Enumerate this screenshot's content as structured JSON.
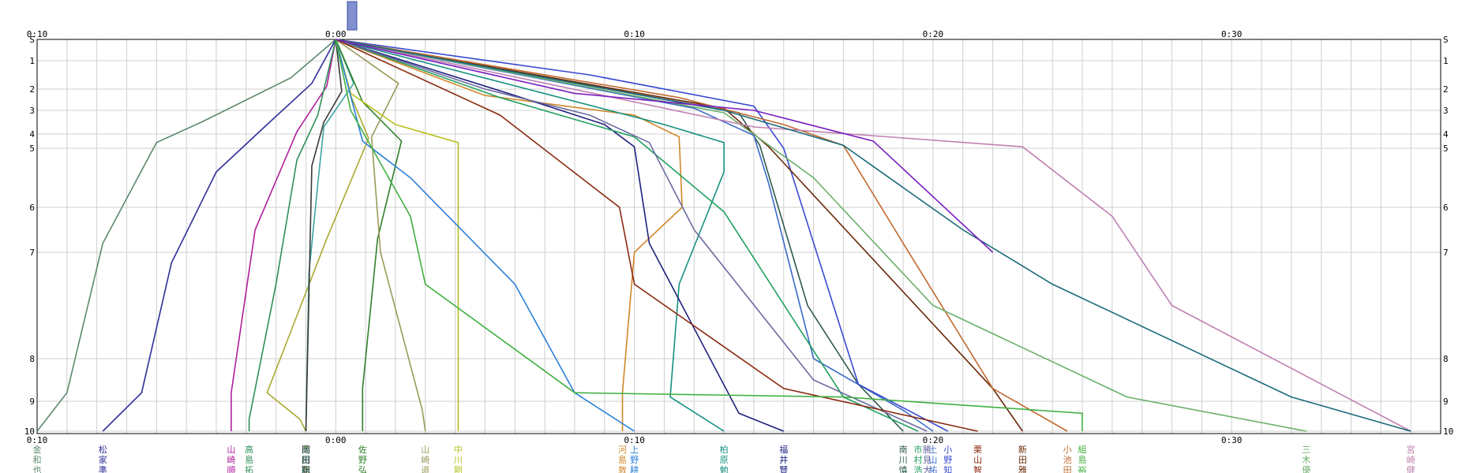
{
  "chart_data": {
    "type": "line",
    "title": "",
    "x_tick_labels": [
      "0:10",
      "0:00",
      "0:10",
      "0:20",
      "0:30"
    ],
    "y_tick_labels": [
      "S",
      "1",
      "2",
      "3",
      "4",
      "5",
      "6",
      "7",
      "8",
      "9",
      "10"
    ],
    "x_range_min": [
      -10,
      37
    ],
    "grid": true,
    "x_unit": "minutes relative to 0:00",
    "series": [
      {
        "name": "金和也",
        "color": "#5b8a6b",
        "points": [
          [
            0,
            0
          ],
          [
            -1.5,
            1.6
          ],
          [
            -4.5,
            3.5
          ],
          [
            -6,
            4.6
          ],
          [
            -7.8,
            6.8
          ],
          [
            -9,
            8.8
          ],
          [
            -10,
            10
          ]
        ]
      },
      {
        "name": "松家準",
        "color": "#2f2f9a",
        "points": [
          [
            0,
            0
          ],
          [
            -0.8,
            1.8
          ],
          [
            -2.3,
            3.6
          ],
          [
            -4,
            5.4
          ],
          [
            -5.5,
            7.1
          ],
          [
            -6.5,
            8.8
          ],
          [
            -7.8,
            10
          ]
        ]
      },
      {
        "name": "山崎順",
        "color": "#b0209c",
        "points": [
          [
            0,
            0
          ],
          [
            -0.3,
            1.9
          ],
          [
            -1.3,
            3.9
          ],
          [
            -2.7,
            6.5
          ],
          [
            -3.5,
            8.8
          ],
          [
            -3.5,
            10
          ]
        ]
      },
      {
        "name": "高島拓",
        "color": "#2e8f5a",
        "points": [
          [
            0,
            0
          ],
          [
            -0.6,
            3.2
          ],
          [
            -1.3,
            5.2
          ],
          [
            -2,
            7.3
          ],
          [
            -2.9,
            9.6
          ],
          [
            -2.9,
            10
          ]
        ]
      },
      {
        "name": "中川宗",
        "color": "#a9a930",
        "points": [
          [
            0,
            0
          ],
          [
            0.5,
            2.3
          ],
          [
            1.1,
            4.3
          ],
          [
            -0.3,
            6.7
          ],
          [
            -2.3,
            8.8
          ],
          [
            -1.2,
            9.6
          ],
          [
            -1,
            10
          ]
        ]
      },
      {
        "name": "西村翔",
        "color": "#3fa3a3",
        "points": [
          [
            0,
            0
          ],
          [
            0.6,
            1.8
          ],
          [
            -0.4,
            3.7
          ],
          [
            -0.6,
            5.6
          ],
          [
            -0.9,
            7.2
          ],
          [
            -1,
            10
          ]
        ]
      },
      {
        "name": "岡田聡",
        "color": "#3a3a3a",
        "points": [
          [
            0,
            0
          ],
          [
            0.2,
            2.1
          ],
          [
            -0.4,
            3.5
          ],
          [
            -0.8,
            5.3
          ],
          [
            -1,
            10
          ]
        ]
      },
      {
        "name": "佐野弘",
        "color": "#30802a",
        "points": [
          [
            0,
            0
          ],
          [
            0.9,
            2.6
          ],
          [
            2.2,
            4.5
          ],
          [
            1.4,
            6.7
          ],
          [
            0.9,
            8.7
          ],
          [
            0.9,
            10
          ]
        ]
      },
      {
        "name": "山崎道",
        "color": "#9a9a5a",
        "points": [
          [
            0,
            0
          ],
          [
            2.1,
            1.8
          ],
          [
            1.2,
            4.2
          ],
          [
            1.5,
            7
          ],
          [
            2.9,
            9.3
          ],
          [
            3,
            10
          ]
        ]
      },
      {
        "name": "中川剛",
        "color": "#b8c020",
        "points": [
          [
            0,
            0
          ],
          [
            0.5,
            2.2
          ],
          [
            2,
            3.6
          ],
          [
            4.1,
            4.6
          ],
          [
            4.1,
            10
          ]
        ]
      },
      {
        "name": "河島敦",
        "color": "#d0882a",
        "points": [
          [
            0,
            0
          ],
          [
            5,
            2.3
          ],
          [
            10,
            3.2
          ],
          [
            11.5,
            4.2
          ],
          [
            11.6,
            6
          ],
          [
            10,
            7
          ],
          [
            9.6,
            8.8
          ],
          [
            9.6,
            10
          ]
        ]
      },
      {
        "name": "上野耕",
        "color": "#2a7fd8",
        "points": [
          [
            0,
            0
          ],
          [
            0.9,
            4.5
          ],
          [
            2.5,
            5.5
          ],
          [
            6,
            7.3
          ],
          [
            8,
            8.8
          ],
          [
            10,
            10
          ]
        ]
      },
      {
        "name": "柏原勉",
        "color": "#159080",
        "points": [
          [
            0,
            0
          ],
          [
            11,
            3.6
          ],
          [
            13,
            4.6
          ],
          [
            13,
            5.4
          ],
          [
            11.5,
            7.3
          ],
          [
            11.2,
            8.9
          ],
          [
            13,
            10
          ]
        ]
      },
      {
        "name": "福井賢",
        "color": "#202080",
        "points": [
          [
            0,
            0
          ],
          [
            6,
            2.3
          ],
          [
            9,
            3.6
          ],
          [
            10,
            4.9
          ],
          [
            10.5,
            6.8
          ],
          [
            13.5,
            9.4
          ],
          [
            15,
            10
          ]
        ]
      },
      {
        "name": "南川慎",
        "color": "#2e5a4a",
        "points": [
          [
            0,
            0
          ],
          [
            13.5,
            3.1
          ],
          [
            14.2,
            4.8
          ],
          [
            15.8,
            7.5
          ],
          [
            17.5,
            8.6
          ],
          [
            19,
            10
          ]
        ]
      },
      {
        "name": "土山祐",
        "color": "#3a6ac8",
        "points": [
          [
            0,
            0
          ],
          [
            12,
            2.9
          ],
          [
            14,
            4.1
          ],
          [
            14.5,
            5.6
          ],
          [
            16,
            8
          ],
          [
            19,
            9.3
          ],
          [
            20,
            10
          ]
        ]
      },
      {
        "name": "市村浩",
        "color": "#20a060",
        "points": [
          [
            0,
            0
          ],
          [
            5.5,
            2.4
          ],
          [
            10,
            4.2
          ],
          [
            13,
            6.1
          ],
          [
            17,
            8.9
          ],
          [
            19.5,
            10
          ]
        ]
      },
      {
        "name": "勝見大",
        "color": "#6a6aa0",
        "points": [
          [
            0,
            0
          ],
          [
            5,
            2
          ],
          [
            8.5,
            3.2
          ],
          [
            10.5,
            4.6
          ],
          [
            12,
            6.5
          ],
          [
            16,
            8.5
          ],
          [
            19.8,
            10
          ]
        ]
      },
      {
        "name": "小野知",
        "color": "#3a4ad0",
        "points": [
          [
            0,
            0
          ],
          [
            8.5,
            1.5
          ],
          [
            14,
            2.8
          ],
          [
            15,
            5
          ],
          [
            17.5,
            8.6
          ],
          [
            20.5,
            10
          ]
        ]
      },
      {
        "name": "栗山智",
        "color": "#8a2a10",
        "points": [
          [
            0,
            0
          ],
          [
            5.5,
            3.2
          ],
          [
            9.5,
            6
          ],
          [
            10,
            7.3
          ],
          [
            15,
            8.7
          ],
          [
            21.5,
            10
          ]
        ]
      },
      {
        "name": "新田雅",
        "color": "#6a2a0a",
        "points": [
          [
            0,
            0
          ],
          [
            13,
            2.9
          ],
          [
            14.5,
            4.9
          ],
          [
            22,
            8.7
          ],
          [
            23,
            10
          ]
        ]
      },
      {
        "name": "小池田",
        "color": "#c06a30",
        "points": [
          [
            0,
            0
          ],
          [
            11.5,
            2.4
          ],
          [
            15,
            3.6
          ],
          [
            17,
            4.8
          ],
          [
            19,
            6.8
          ],
          [
            22,
            8.7
          ],
          [
            24.5,
            10
          ]
        ]
      },
      {
        "name": "組島裕",
        "color": "#40b040",
        "points": [
          [
            0,
            0
          ],
          [
            0.5,
            3
          ],
          [
            2.5,
            6.2
          ],
          [
            3,
            7.3
          ],
          [
            8,
            8.8
          ],
          [
            17,
            8.9
          ],
          [
            25,
            9.4
          ],
          [
            25,
            10
          ]
        ]
      },
      {
        "name": "三木優",
        "color": "#6ab06a",
        "points": [
          [
            0,
            0
          ],
          [
            13,
            3.1
          ],
          [
            16,
            5.5
          ],
          [
            20,
            7.5
          ],
          [
            26.5,
            8.9
          ],
          [
            32.5,
            10
          ]
        ]
      },
      {
        "name": "宮崎健",
        "color": "#c080b0",
        "points": [
          [
            0,
            0
          ],
          [
            14,
            3.7
          ],
          [
            23,
            4.9
          ],
          [
            26,
            6.2
          ],
          [
            28,
            7.5
          ],
          [
            36,
            10
          ]
        ]
      },
      {
        "name": "",
        "color": "#1a6a7a",
        "points": [
          [
            0,
            0
          ],
          [
            13,
            3
          ],
          [
            17,
            4.8
          ],
          [
            21,
            6.5
          ],
          [
            24,
            7.3
          ],
          [
            32,
            8.9
          ],
          [
            36,
            10
          ]
        ]
      },
      {
        "name": "",
        "color": "#7a20c0",
        "points": [
          [
            0,
            0
          ],
          [
            8,
            2.2
          ],
          [
            14,
            3
          ],
          [
            18,
            4.5
          ],
          [
            22,
            7
          ]
        ]
      }
    ]
  },
  "header": {
    "badge_lines": [
      "​",
      "​",
      "​"
    ]
  },
  "runners_left_to_right": [
    "金和也",
    "松家準",
    "山崎順",
    "高島拓",
    "中川宗",
    "西村翔",
    "岡田聡",
    "佐野弘",
    "山崎道",
    "中川剛",
    "河島敦",
    "上野耕",
    "柏原勉",
    "福井賢",
    "南川慎",
    "土山祐",
    "市村浩",
    "勝見大",
    "小野知",
    "栗山智",
    "新田雅",
    "小池田",
    "組島裕",
    "三木優",
    "宮崎健"
  ]
}
